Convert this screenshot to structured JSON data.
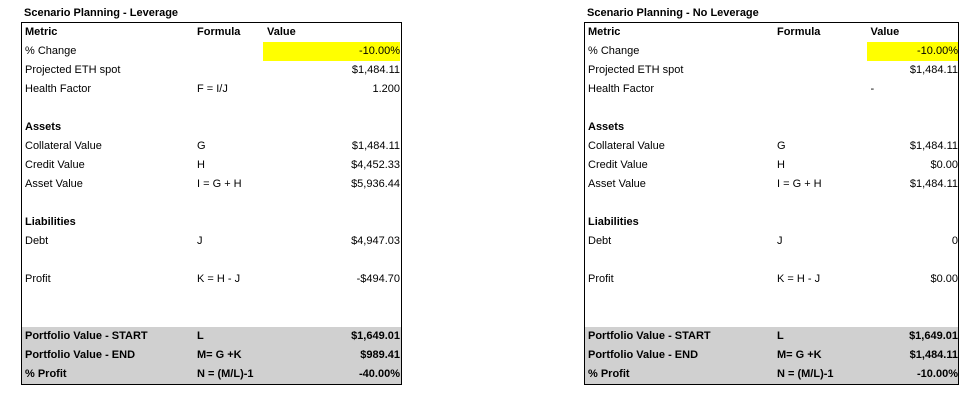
{
  "left": {
    "title": "Scenario Planning - Leverage",
    "headers": {
      "metric": "Metric",
      "formula": "Formula",
      "value": "Value"
    },
    "rows": [
      {
        "metric": "% Change",
        "formula": "",
        "value": "-10.00%"
      },
      {
        "metric": "Projected ETH spot",
        "formula": "",
        "value": "$1,484.11"
      },
      {
        "metric": "Health Factor",
        "formula": "F = I/J",
        "value": "1.200"
      },
      {
        "metric": "",
        "formula": "",
        "value": ""
      },
      {
        "metric": "Assets",
        "formula": "",
        "value": ""
      },
      {
        "metric": "Collateral Value",
        "formula": "G",
        "value": "$1,484.11"
      },
      {
        "metric": "Credit Value",
        "formula": "H",
        "value": "$4,452.33"
      },
      {
        "metric": "Asset Value",
        "formula": "I = G + H",
        "value": "$5,936.44"
      },
      {
        "metric": "",
        "formula": "",
        "value": ""
      },
      {
        "metric": "Liabilities",
        "formula": "",
        "value": ""
      },
      {
        "metric": "Debt",
        "formula": "J",
        "value": "$4,947.03"
      },
      {
        "metric": "",
        "formula": "",
        "value": ""
      },
      {
        "metric": "Profit",
        "formula": "K = H - J",
        "value": "-$494.70"
      },
      {
        "metric": "",
        "formula": "",
        "value": ""
      },
      {
        "metric": "",
        "formula": "",
        "value": ""
      },
      {
        "metric": "Portfolio Value - START",
        "formula": "L",
        "value": "$1,649.01"
      },
      {
        "metric": "Portfolio Value - END",
        "formula": "M= G +K",
        "value": "$989.41"
      },
      {
        "metric": "% Profit",
        "formula": "N = (M/L)-1",
        "value": "-40.00%"
      }
    ]
  },
  "right": {
    "title": "Scenario Planning - No Leverage",
    "headers": {
      "metric": "Metric",
      "formula": "Formula",
      "value": "Value"
    },
    "rows": [
      {
        "metric": "% Change",
        "formula": "",
        "value": "-10.00%"
      },
      {
        "metric": "Projected ETH spot",
        "formula": "",
        "value": "$1,484.11"
      },
      {
        "metric": "Health Factor",
        "formula": "",
        "value": "-"
      },
      {
        "metric": "",
        "formula": "",
        "value": ""
      },
      {
        "metric": "Assets",
        "formula": "",
        "value": ""
      },
      {
        "metric": "Collateral Value",
        "formula": "G",
        "value": "$1,484.11"
      },
      {
        "metric": "Credit Value",
        "formula": "H",
        "value": "$0.00"
      },
      {
        "metric": "Asset Value",
        "formula": "I = G + H",
        "value": "$1,484.11"
      },
      {
        "metric": "",
        "formula": "",
        "value": ""
      },
      {
        "metric": "Liabilities",
        "formula": "",
        "value": ""
      },
      {
        "metric": "Debt",
        "formula": "J",
        "value": "0"
      },
      {
        "metric": "",
        "formula": "",
        "value": ""
      },
      {
        "metric": "Profit",
        "formula": "K = H - J",
        "value": "$0.00"
      },
      {
        "metric": "",
        "formula": "",
        "value": ""
      },
      {
        "metric": "",
        "formula": "",
        "value": ""
      },
      {
        "metric": "Portfolio Value - START",
        "formula": "L",
        "value": "$1,649.01"
      },
      {
        "metric": "Portfolio Value - END",
        "formula": "M= G +K",
        "value": "$1,484.11"
      },
      {
        "metric": "% Profit",
        "formula": "N = (M/L)-1",
        "value": "-10.00%"
      }
    ]
  },
  "colors": {
    "highlight": "#ffff00",
    "summary": "#d0d0d0"
  }
}
